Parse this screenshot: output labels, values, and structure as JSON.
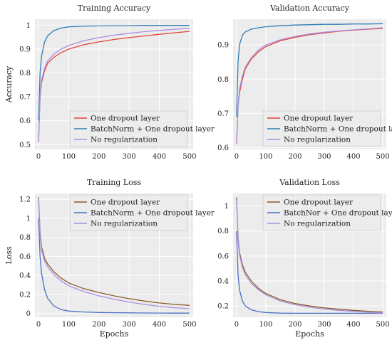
{
  "figure": {
    "background": "#ffffff",
    "plot_background": "#ececec",
    "grid_color": "#ffffff"
  },
  "chart_data": [
    {
      "id": "train-acc",
      "type": "line",
      "title": "Training Accuracy",
      "xlabel": "",
      "ylabel": "Accuracy",
      "xlim": [
        -12,
        512
      ],
      "ylim": [
        0.48,
        1.025
      ],
      "xticks": [
        0,
        100,
        200,
        300,
        400,
        500
      ],
      "yticks": [
        0.5,
        0.6,
        0.7,
        0.8,
        0.9,
        1
      ],
      "ytick_labels": [
        "0.5",
        "0.6",
        "0.7",
        "0.8",
        "0.9",
        "1"
      ],
      "grid": true,
      "legend": "bottom-right",
      "series": [
        {
          "name": "One dropout layer",
          "color": "#e0453a",
          "x": [
            0,
            5,
            10,
            20,
            30,
            50,
            75,
            100,
            150,
            200,
            250,
            300,
            350,
            400,
            450,
            500
          ],
          "y": [
            0.51,
            0.7,
            0.76,
            0.81,
            0.84,
            0.865,
            0.885,
            0.9,
            0.918,
            0.93,
            0.94,
            0.948,
            0.955,
            0.962,
            0.968,
            0.974
          ]
        },
        {
          "name": "BatchNorm + One dropout layer",
          "color": "#2f7fb5",
          "x": [
            0,
            5,
            10,
            20,
            30,
            50,
            75,
            100,
            150,
            200,
            250,
            300,
            350,
            400,
            450,
            500
          ],
          "y": [
            0.6,
            0.8,
            0.87,
            0.93,
            0.955,
            0.977,
            0.988,
            0.993,
            0.996,
            0.997,
            0.998,
            0.998,
            0.999,
            0.999,
            0.999,
            0.999
          ]
        },
        {
          "name": "No regularization",
          "color": "#a98ee0",
          "x": [
            0,
            5,
            10,
            20,
            30,
            50,
            75,
            100,
            150,
            200,
            250,
            300,
            350,
            400,
            450,
            500
          ],
          "y": [
            0.51,
            0.71,
            0.77,
            0.82,
            0.85,
            0.878,
            0.9,
            0.915,
            0.935,
            0.948,
            0.958,
            0.966,
            0.973,
            0.978,
            0.983,
            0.987
          ]
        }
      ]
    },
    {
      "id": "val-acc",
      "type": "line",
      "title": "Validation Accuracy",
      "xlabel": "",
      "ylabel": "",
      "xlim": [
        -12,
        512
      ],
      "ylim": [
        0.595,
        0.975
      ],
      "xticks": [
        0,
        100,
        200,
        300,
        400,
        500
      ],
      "yticks": [
        0.6,
        0.7,
        0.8,
        0.9
      ],
      "ytick_labels": [
        "0.6",
        "0.7",
        "0.8",
        "0.9"
      ],
      "grid": true,
      "legend": "bottom-right",
      "series": [
        {
          "name": "One dropout layer",
          "color": "#e0453a",
          "x": [
            0,
            5,
            10,
            20,
            30,
            50,
            75,
            100,
            150,
            200,
            250,
            300,
            350,
            400,
            450,
            500
          ],
          "y": [
            0.61,
            0.72,
            0.76,
            0.8,
            0.83,
            0.858,
            0.88,
            0.895,
            0.912,
            0.922,
            0.93,
            0.935,
            0.94,
            0.943,
            0.946,
            0.948
          ]
        },
        {
          "name": "BatchNorm + One dropout layer",
          "color": "#2f7fb5",
          "x": [
            0,
            5,
            10,
            20,
            30,
            50,
            75,
            100,
            150,
            200,
            250,
            300,
            350,
            400,
            450,
            500
          ],
          "y": [
            0.69,
            0.85,
            0.9,
            0.928,
            0.938,
            0.946,
            0.95,
            0.953,
            0.956,
            0.958,
            0.959,
            0.96,
            0.96,
            0.961,
            0.961,
            0.962
          ]
        },
        {
          "name": "No regularization",
          "color": "#a98ee0",
          "x": [
            0,
            5,
            10,
            20,
            30,
            50,
            75,
            100,
            150,
            200,
            250,
            300,
            350,
            400,
            450,
            500
          ],
          "y": [
            0.61,
            0.72,
            0.77,
            0.81,
            0.835,
            0.862,
            0.885,
            0.9,
            0.915,
            0.925,
            0.932,
            0.937,
            0.941,
            0.944,
            0.947,
            0.95
          ]
        }
      ]
    },
    {
      "id": "train-loss",
      "type": "line",
      "title": "Training Loss",
      "xlabel": "Epochs",
      "ylabel": "Loss",
      "xlim": [
        -12,
        512
      ],
      "ylim": [
        -0.04,
        1.26
      ],
      "xticks": [
        0,
        100,
        200,
        300,
        400,
        500
      ],
      "yticks": [
        0,
        0.2,
        0.4,
        0.6,
        0.8,
        1,
        1.2
      ],
      "ytick_labels": [
        "0",
        "0.2",
        "0.4",
        "0.6",
        "0.8",
        "1",
        "1.2"
      ],
      "grid": true,
      "legend": "top-right",
      "series": [
        {
          "name": "One dropout layer",
          "color": "#8b5a2b",
          "x": [
            0,
            5,
            10,
            20,
            30,
            50,
            75,
            100,
            150,
            200,
            250,
            300,
            350,
            400,
            450,
            500
          ],
          "y": [
            1.22,
            0.85,
            0.7,
            0.58,
            0.52,
            0.44,
            0.37,
            0.32,
            0.26,
            0.22,
            0.185,
            0.155,
            0.13,
            0.11,
            0.095,
            0.085
          ]
        },
        {
          "name": "BatchNorm + One dropout layer",
          "color": "#4a6fc4",
          "x": [
            0,
            5,
            10,
            20,
            30,
            50,
            75,
            100,
            150,
            200,
            250,
            300,
            350,
            400,
            450,
            500
          ],
          "y": [
            1.0,
            0.6,
            0.42,
            0.25,
            0.16,
            0.08,
            0.04,
            0.025,
            0.015,
            0.01,
            0.008,
            0.006,
            0.005,
            0.004,
            0.003,
            0.003
          ]
        },
        {
          "name": "No regularization",
          "color": "#a98ee0",
          "x": [
            0,
            5,
            10,
            20,
            30,
            50,
            75,
            100,
            150,
            200,
            250,
            300,
            350,
            400,
            450,
            500
          ],
          "y": [
            1.2,
            0.82,
            0.67,
            0.55,
            0.49,
            0.41,
            0.34,
            0.29,
            0.23,
            0.185,
            0.15,
            0.12,
            0.095,
            0.075,
            0.06,
            0.05
          ]
        }
      ]
    },
    {
      "id": "val-loss",
      "type": "line",
      "title": "Validation Loss",
      "xlabel": "Epochs",
      "ylabel": "",
      "xlim": [
        -12,
        512
      ],
      "ylim": [
        0.11,
        1.1
      ],
      "xticks": [
        0,
        100,
        200,
        300,
        400,
        500
      ],
      "yticks": [
        0.2,
        0.4,
        0.6,
        0.8,
        1
      ],
      "ytick_labels": [
        "0.2",
        "0.4",
        "0.6",
        "0.8",
        "1"
      ],
      "grid": true,
      "legend": "top-right",
      "series": [
        {
          "name": "One dropout layer",
          "color": "#8b5a2b",
          "x": [
            0,
            5,
            10,
            20,
            30,
            50,
            75,
            100,
            150,
            200,
            250,
            300,
            350,
            400,
            450,
            500
          ],
          "y": [
            1.07,
            0.75,
            0.63,
            0.53,
            0.47,
            0.4,
            0.34,
            0.3,
            0.25,
            0.22,
            0.2,
            0.185,
            0.175,
            0.165,
            0.158,
            0.152
          ]
        },
        {
          "name": "BatchNor + One dropout layer",
          "color": "#4a6fc4",
          "x": [
            0,
            5,
            10,
            20,
            30,
            50,
            75,
            100,
            150,
            200,
            250,
            300,
            350,
            400,
            450,
            500
          ],
          "y": [
            0.8,
            0.45,
            0.33,
            0.24,
            0.2,
            0.17,
            0.155,
            0.148,
            0.143,
            0.142,
            0.142,
            0.142,
            0.142,
            0.142,
            0.142,
            0.143
          ]
        },
        {
          "name": "No regularization",
          "color": "#a98ee0",
          "x": [
            0,
            5,
            10,
            20,
            30,
            50,
            75,
            100,
            150,
            200,
            250,
            300,
            350,
            400,
            450,
            500
          ],
          "y": [
            1.05,
            0.73,
            0.61,
            0.51,
            0.45,
            0.38,
            0.33,
            0.29,
            0.24,
            0.21,
            0.19,
            0.175,
            0.165,
            0.157,
            0.15,
            0.145
          ]
        }
      ]
    }
  ]
}
